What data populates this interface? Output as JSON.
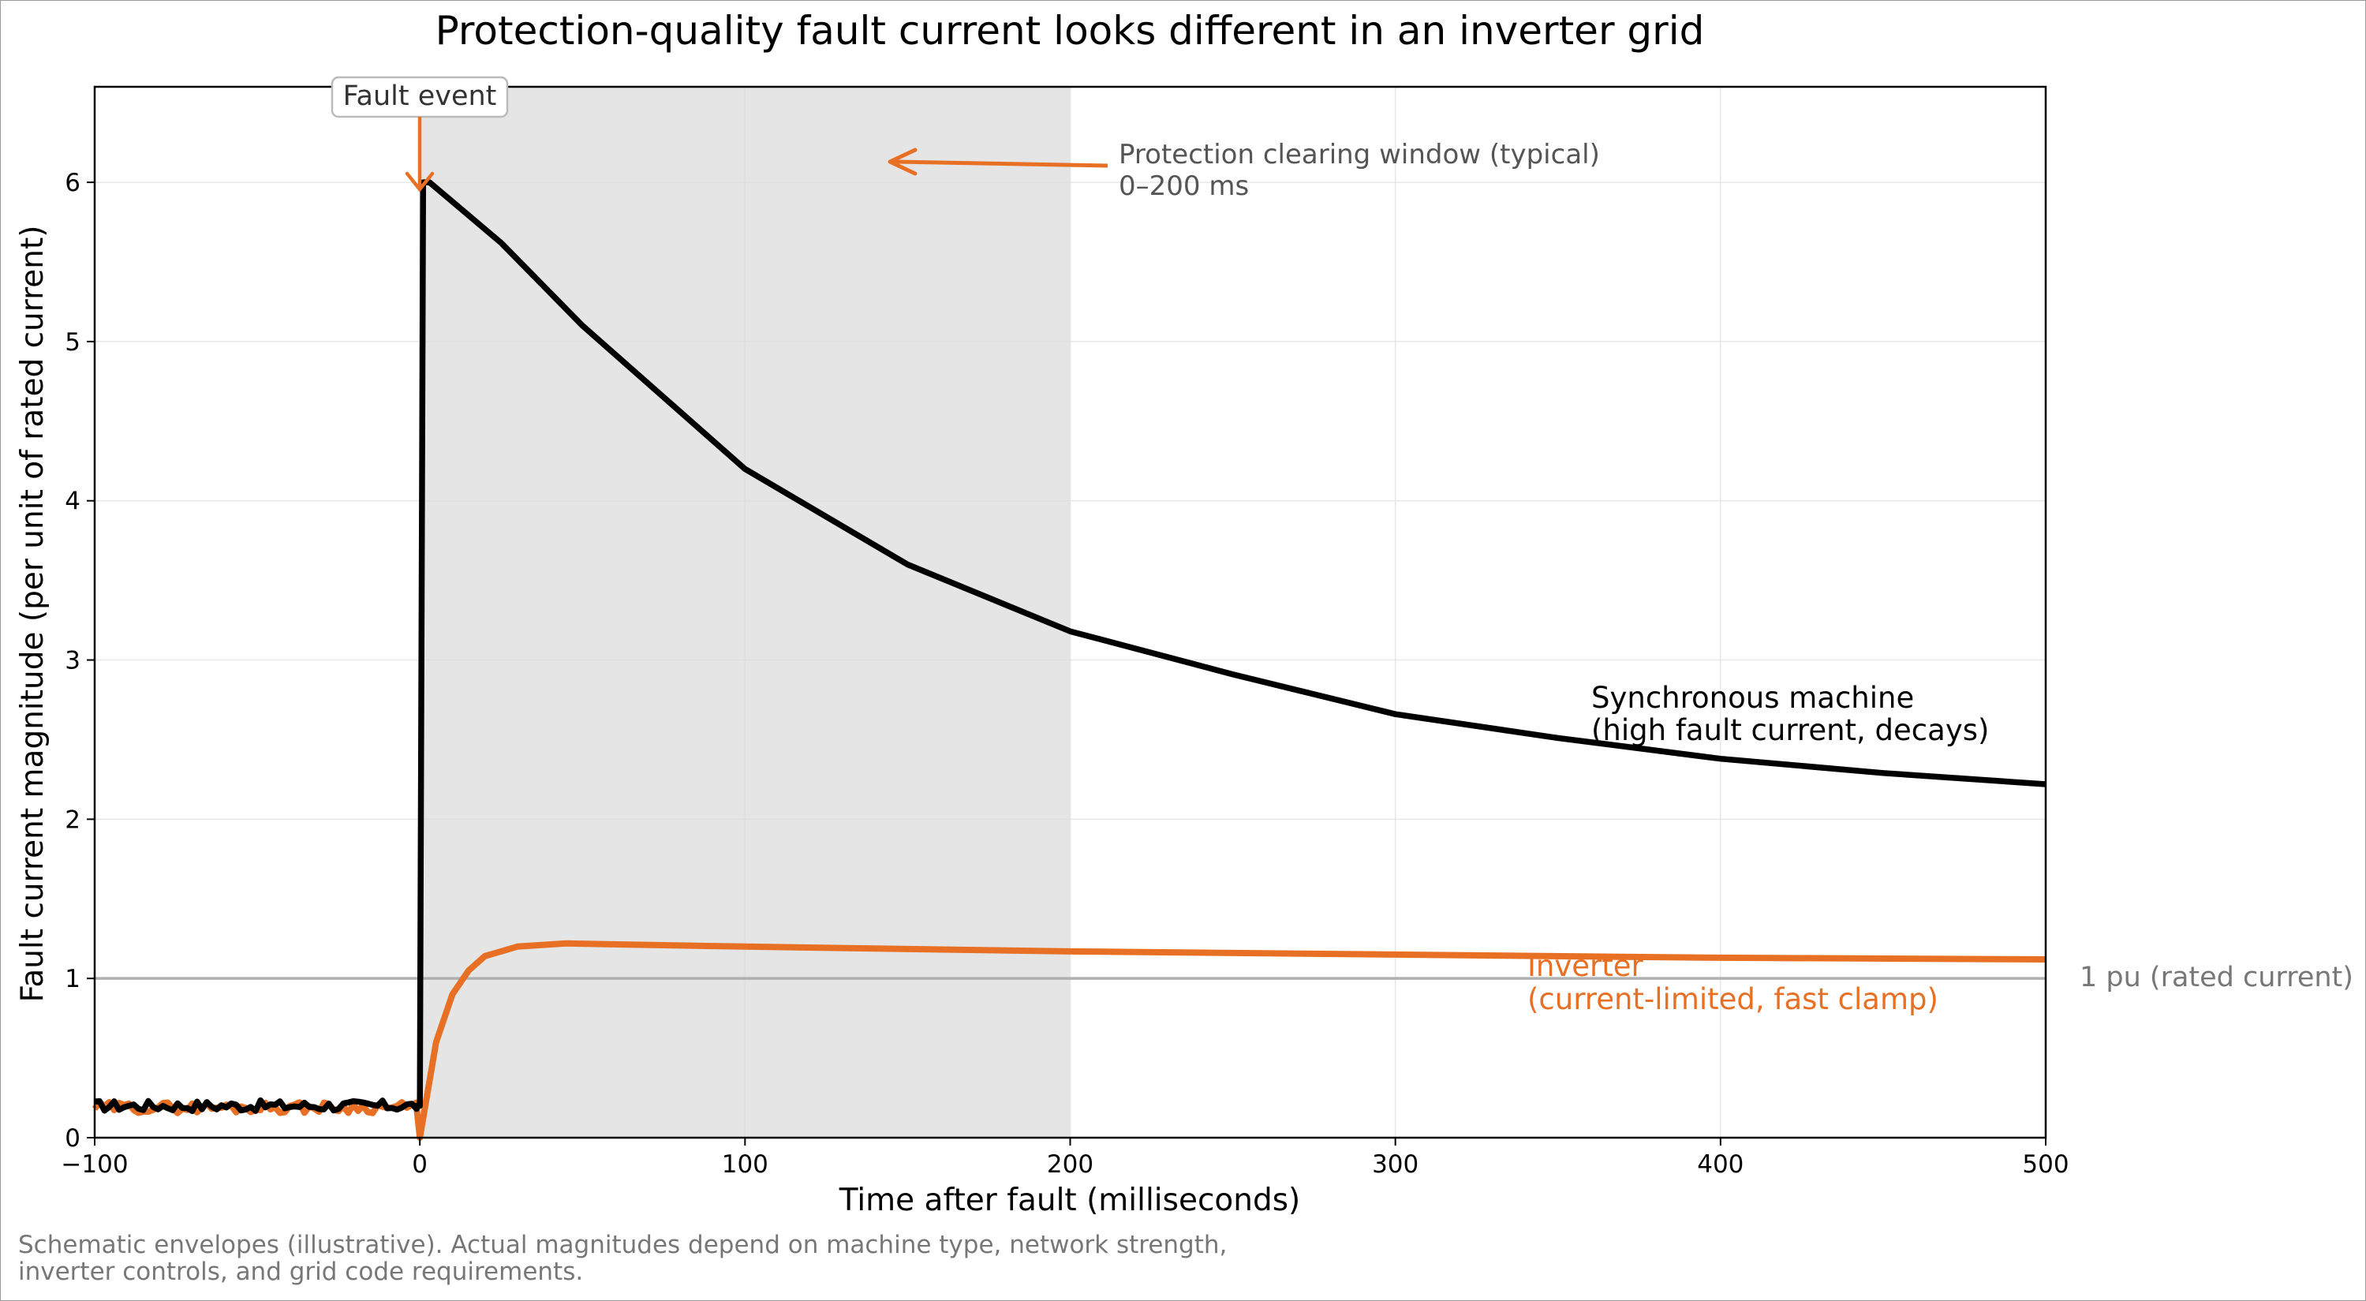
{
  "chart_data": {
    "type": "line",
    "title": "Protection-quality fault current looks different in an inverter grid",
    "xlabel": "Time after fault (milliseconds)",
    "ylabel": "Fault current magnitude (per unit of rated current)",
    "xlim": [
      -100,
      500
    ],
    "ylim": [
      0,
      6.6
    ],
    "x_ticks": [
      -100,
      0,
      100,
      200,
      300,
      400,
      500
    ],
    "x_tick_labels": [
      "−100",
      "0",
      "100",
      "200",
      "300",
      "400",
      "500"
    ],
    "y_ticks": [
      0,
      1,
      2,
      3,
      4,
      5,
      6
    ],
    "y_tick_labels": [
      "0",
      "1",
      "2",
      "3",
      "4",
      "5",
      "6"
    ],
    "grid": true,
    "series": [
      {
        "name": "Synchronous machine",
        "color": "#000000",
        "pre_fault_level": 0.2,
        "peak": 6.0,
        "peak_time_ms": 3,
        "points": [
          [
            0,
            0.2
          ],
          [
            1,
            6.0
          ],
          [
            3,
            6.0
          ],
          [
            25,
            5.62
          ],
          [
            50,
            5.1
          ],
          [
            100,
            4.2
          ],
          [
            150,
            3.6
          ],
          [
            200,
            3.18
          ],
          [
            250,
            2.91
          ],
          [
            300,
            2.66
          ],
          [
            350,
            2.51
          ],
          [
            400,
            2.38
          ],
          [
            450,
            2.29
          ],
          [
            500,
            2.22
          ]
        ]
      },
      {
        "name": "Inverter",
        "color": "#e87025",
        "pre_fault_level": 0.19,
        "points": [
          [
            0,
            0.0
          ],
          [
            5,
            0.6
          ],
          [
            10,
            0.9
          ],
          [
            15,
            1.05
          ],
          [
            20,
            1.14
          ],
          [
            30,
            1.2
          ],
          [
            45,
            1.22
          ],
          [
            100,
            1.2
          ],
          [
            200,
            1.17
          ],
          [
            300,
            1.15
          ],
          [
            400,
            1.13
          ],
          [
            500,
            1.12
          ]
        ]
      }
    ],
    "reference_line": {
      "y": 1,
      "color": "#b0b0b0",
      "label": "1 pu (rated current)"
    },
    "shaded_region": {
      "x": [
        0,
        200
      ],
      "color": "#e5e5e5"
    },
    "annotations": {
      "fault_event": {
        "text": "Fault event",
        "x": 0
      },
      "clearing_window": {
        "line1": "Protection clearing window (typical)",
        "line2": "0–200 ms"
      },
      "sync_label": {
        "line1": "Synchronous machine",
        "line2": "(high fault current, decays)"
      },
      "inverter_label": {
        "line1": "Inverter",
        "line2": "(current-limited, fast clamp)"
      }
    },
    "footnote": {
      "line1": "Schematic envelopes (illustrative). Actual magnitudes depend on machine type, network strength,",
      "line2": "inverter controls, and grid code requirements."
    }
  }
}
